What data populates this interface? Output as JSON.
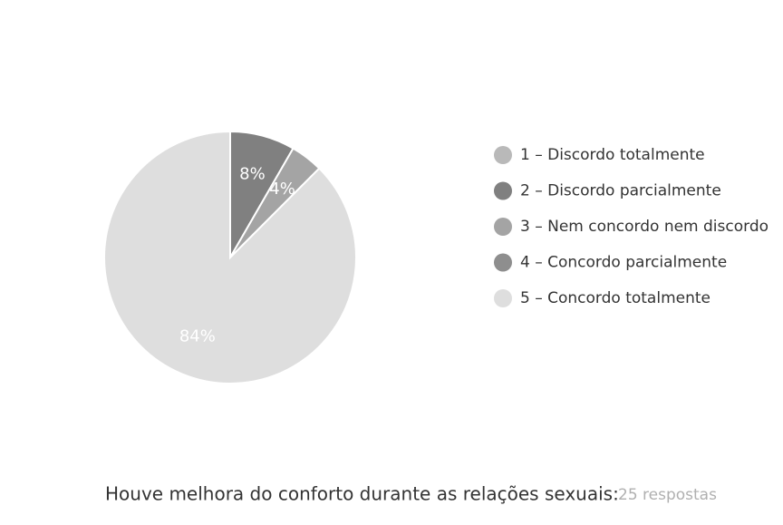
{
  "chart_data": {
    "type": "pie",
    "categories": [
      "1 – Discordo totalmente",
      "2 – Discordo parcialmente",
      "3 – Nem concordo nem discordo",
      "4 – Concordo parcialmente",
      "5 – Concordo totalmente"
    ],
    "values": [
      0,
      8,
      4,
      0,
      84
    ],
    "value_labels": [
      null,
      "8%",
      "4%",
      null,
      "84%"
    ],
    "colors": [
      "#b9b9b9",
      "#808080",
      "#a4a4a4",
      "#8e8e8e",
      "#dedede"
    ],
    "caption": "Houve melhora do conforto durante as relações sexuais:",
    "note": "25 respostas"
  }
}
